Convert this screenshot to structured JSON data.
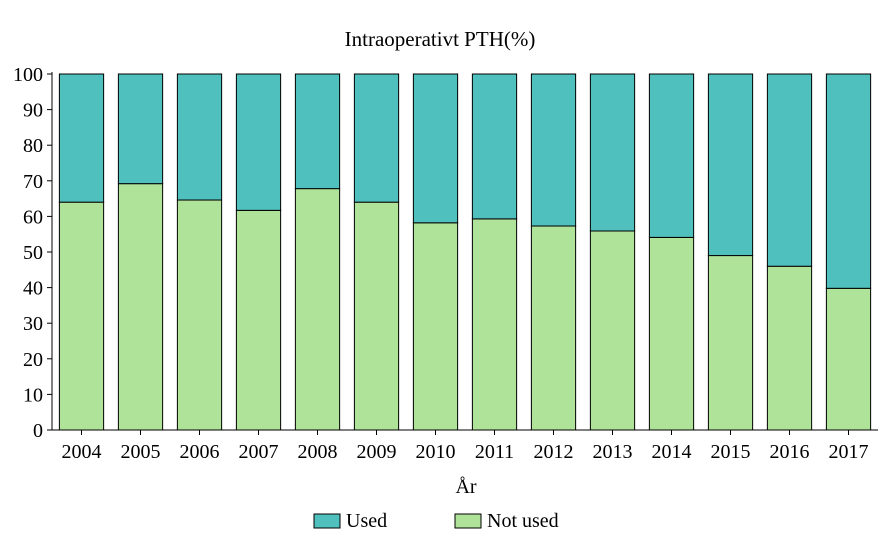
{
  "chart_data": {
    "type": "bar",
    "stacked": true,
    "title": "Intraoperativt PTH(%)",
    "xlabel": "År",
    "ylabel": "",
    "ylim": [
      0,
      100
    ],
    "yticks": [
      0,
      10,
      20,
      30,
      40,
      50,
      60,
      70,
      80,
      90,
      100
    ],
    "categories": [
      "2004",
      "2005",
      "2006",
      "2007",
      "2008",
      "2009",
      "2010",
      "2011",
      "2012",
      "2013",
      "2014",
      "2015",
      "2016",
      "2017"
    ],
    "series": [
      {
        "name": "Not used",
        "color": "#b0e39a",
        "values": [
          64,
          69.2,
          64.6,
          61.7,
          67.8,
          64,
          58.2,
          59.3,
          57.3,
          55.9,
          54.1,
          49,
          46,
          39.8
        ]
      },
      {
        "name": "Used",
        "color": "#4fc0bd",
        "values": [
          36,
          30.8,
          35.4,
          38.3,
          32.2,
          36,
          41.8,
          40.7,
          42.7,
          44.1,
          45.9,
          51,
          54,
          60.2
        ]
      }
    ],
    "legend": {
      "position": "bottom",
      "items": [
        {
          "label": "Used",
          "color": "#4fc0bd"
        },
        {
          "label": "Not used",
          "color": "#b0e39a"
        }
      ]
    },
    "grid": false
  }
}
